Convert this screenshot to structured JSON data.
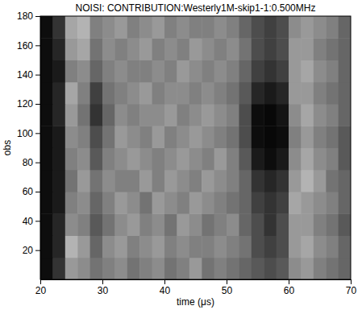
{
  "chart_data": {
    "type": "heatmap",
    "title": "NOISI: CONTRIBUTION:Westerly1M-skip1-1:0.500MHz",
    "x_label": "time (μs)",
    "y_label": "obs",
    "color": "gray",
    "zlim": [
      0,
      1
    ],
    "xlim": [
      20,
      70
    ],
    "ylim": [
      0,
      180
    ],
    "xticks": [
      20,
      30,
      40,
      50,
      60,
      70
    ],
    "yticks": [
      20,
      40,
      60,
      80,
      100,
      120,
      140,
      160,
      180
    ],
    "x": [
      21,
      23,
      25,
      27,
      29,
      31,
      33,
      35,
      37,
      39,
      41,
      43,
      45,
      47,
      49,
      51,
      53,
      55,
      57,
      59,
      61,
      63,
      65,
      67,
      69
    ],
    "y": [
      7.5,
      22.5,
      37.5,
      52.5,
      67.5,
      82.5,
      97.5,
      112.5,
      127.5,
      142.5,
      157.5,
      172.5
    ],
    "values": [
      [
        0.05,
        0.2,
        0.6,
        0.55,
        0.45,
        0.5,
        0.55,
        0.45,
        0.5,
        0.55,
        0.45,
        0.5,
        0.6,
        0.45,
        0.5,
        0.45,
        0.4,
        0.35,
        0.3,
        0.35,
        0.55,
        0.6,
        0.5,
        0.45,
        0.4
      ],
      [
        0.05,
        0.15,
        0.7,
        0.6,
        0.4,
        0.55,
        0.6,
        0.5,
        0.55,
        0.6,
        0.5,
        0.55,
        0.5,
        0.5,
        0.55,
        0.5,
        0.45,
        0.3,
        0.25,
        0.3,
        0.6,
        0.65,
        0.55,
        0.5,
        0.4
      ],
      [
        0.05,
        0.15,
        0.55,
        0.5,
        0.35,
        0.45,
        0.55,
        0.6,
        0.5,
        0.55,
        0.45,
        0.6,
        0.55,
        0.45,
        0.5,
        0.55,
        0.4,
        0.3,
        0.2,
        0.3,
        0.6,
        0.6,
        0.5,
        0.45,
        0.35
      ],
      [
        0.05,
        0.1,
        0.5,
        0.55,
        0.4,
        0.5,
        0.6,
        0.55,
        0.45,
        0.6,
        0.55,
        0.5,
        0.6,
        0.55,
        0.5,
        0.45,
        0.4,
        0.25,
        0.2,
        0.25,
        0.65,
        0.6,
        0.55,
        0.5,
        0.4
      ],
      [
        0.05,
        0.1,
        0.45,
        0.6,
        0.45,
        0.55,
        0.5,
        0.5,
        0.6,
        0.5,
        0.6,
        0.55,
        0.5,
        0.6,
        0.55,
        0.5,
        0.4,
        0.2,
        0.15,
        0.2,
        0.6,
        0.7,
        0.6,
        0.45,
        0.4
      ],
      [
        0.05,
        0.1,
        0.5,
        0.55,
        0.35,
        0.5,
        0.55,
        0.6,
        0.55,
        0.5,
        0.55,
        0.6,
        0.55,
        0.5,
        0.6,
        0.5,
        0.35,
        0.1,
        0.05,
        0.1,
        0.55,
        0.65,
        0.55,
        0.5,
        0.35
      ],
      [
        0.05,
        0.1,
        0.55,
        0.5,
        0.3,
        0.45,
        0.6,
        0.55,
        0.5,
        0.6,
        0.5,
        0.55,
        0.6,
        0.55,
        0.5,
        0.45,
        0.3,
        0.05,
        0.03,
        0.05,
        0.5,
        0.6,
        0.5,
        0.45,
        0.35
      ],
      [
        0.05,
        0.15,
        0.6,
        0.45,
        0.2,
        0.4,
        0.55,
        0.5,
        0.55,
        0.55,
        0.6,
        0.5,
        0.55,
        0.6,
        0.55,
        0.5,
        0.3,
        0.05,
        0.03,
        0.08,
        0.55,
        0.65,
        0.55,
        0.5,
        0.4
      ],
      [
        0.05,
        0.15,
        0.65,
        0.5,
        0.25,
        0.45,
        0.5,
        0.55,
        0.6,
        0.5,
        0.55,
        0.55,
        0.5,
        0.55,
        0.5,
        0.45,
        0.35,
        0.15,
        0.1,
        0.15,
        0.6,
        0.6,
        0.5,
        0.45,
        0.4
      ],
      [
        0.05,
        0.1,
        0.5,
        0.55,
        0.4,
        0.5,
        0.55,
        0.5,
        0.5,
        0.55,
        0.5,
        0.6,
        0.55,
        0.5,
        0.55,
        0.5,
        0.4,
        0.25,
        0.2,
        0.25,
        0.6,
        0.65,
        0.55,
        0.5,
        0.4
      ],
      [
        0.05,
        0.15,
        0.6,
        0.65,
        0.45,
        0.55,
        0.5,
        0.55,
        0.6,
        0.5,
        0.55,
        0.5,
        0.6,
        0.55,
        0.5,
        0.55,
        0.45,
        0.3,
        0.25,
        0.3,
        0.6,
        0.6,
        0.5,
        0.45,
        0.4
      ],
      [
        0.05,
        0.2,
        0.65,
        0.7,
        0.5,
        0.55,
        0.6,
        0.5,
        0.55,
        0.6,
        0.5,
        0.55,
        0.5,
        0.5,
        0.55,
        0.5,
        0.4,
        0.3,
        0.25,
        0.3,
        0.55,
        0.6,
        0.55,
        0.5,
        0.4
      ]
    ]
  }
}
